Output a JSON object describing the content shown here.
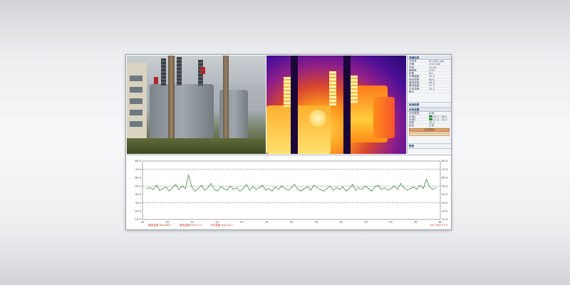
{
  "info_panel": {
    "section_top": "测温信息",
    "rows_top": [
      {
        "k": "文件名",
        "v": "IR_0001.jpg"
      },
      {
        "k": "日期",
        "v": "2012-6-8"
      },
      {
        "k": "时间",
        "v": "10:26"
      },
      {
        "k": "辐射率",
        "v": "0.95"
      },
      {
        "k": "距离",
        "v": "5m"
      },
      {
        "k": "环境温度",
        "v": "25.0"
      },
      {
        "k": "相对湿度",
        "v": "60%"
      },
      {
        "k": "最高温度",
        "v": "68.5"
      },
      {
        "k": "最低温度",
        "v": "21.3"
      },
      {
        "k": "平均温度",
        "v": "35.2"
      }
    ],
    "note_top": "备注",
    "label_mid": "检测结果",
    "section_low": "分析设置",
    "rows_low": [
      {
        "k": "分析类型",
        "v": "区域"
      },
      {
        "k": "区域1",
        "v": "35.2 - 68.5",
        "color": "#2e8b3a"
      },
      {
        "k": "区域2",
        "v": "21.3 - 42.0",
        "color": "#2e8b3a"
      },
      {
        "k": "温差",
        "v": "26.5"
      },
      {
        "k": "结论",
        "v": "正常"
      }
    ],
    "button_label": "生成报告",
    "label_bottom": "报告"
  },
  "chart_data": {
    "type": "line",
    "yticks_left": [
      "80.0",
      "70.0",
      "60.0",
      "50.0",
      "40.0",
      "30.0",
      "20.0",
      "10.0"
    ],
    "yticks_right": [
      "80.0",
      "70.0",
      "60.0",
      "50.0",
      "40.0",
      "30.0",
      "20.0",
      "10.0"
    ],
    "xticks": [
      "00",
      "05",
      "10",
      "15",
      "20",
      "25",
      "30",
      "35",
      "40",
      "45",
      "50",
      "55",
      "60"
    ],
    "ylim": [
      10,
      80
    ],
    "ref_lines": [
      70,
      50,
      30
    ],
    "series": [
      {
        "color": "#2e7d32",
        "values": [
          47,
          48,
          46,
          51,
          45,
          47,
          49,
          44,
          48,
          52,
          46,
          50,
          47,
          63,
          49,
          44,
          47,
          51,
          45,
          48,
          53,
          46,
          44,
          49,
          47,
          45,
          50,
          46,
          48,
          44,
          47,
          52,
          45,
          49,
          46,
          48,
          51,
          45,
          47,
          44,
          49,
          46,
          50,
          47,
          45,
          48,
          52,
          46,
          44,
          47,
          49,
          45,
          51,
          48,
          46,
          44,
          47,
          50,
          45,
          48,
          46,
          49,
          44,
          47,
          52,
          45,
          48,
          46,
          50,
          47,
          44,
          49,
          51,
          46,
          48,
          45,
          47,
          50,
          46,
          53,
          48,
          45,
          47,
          49,
          46,
          51,
          47,
          58,
          49,
          46,
          48
        ]
      }
    ],
    "legend": [
      "最高温度 Max:68.5",
      "最低温度 Min:21.3",
      "平均温度 Avg:35.2"
    ],
    "corner_note": "Sp1 Max:47.5"
  }
}
